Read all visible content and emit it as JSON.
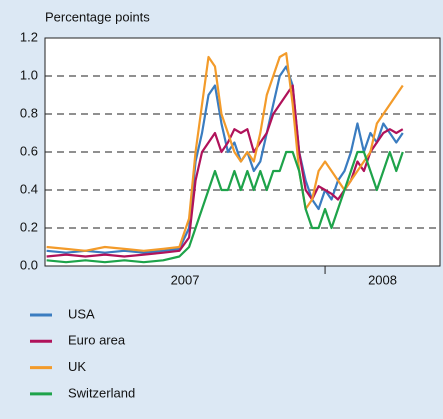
{
  "chart_data": {
    "type": "line",
    "title": "Percentage points",
    "x": [
      2007.14,
      2007.2,
      2007.26,
      2007.32,
      2007.38,
      2007.44,
      2007.5,
      2007.55,
      2007.58,
      2007.6,
      2007.62,
      2007.64,
      2007.66,
      2007.68,
      2007.7,
      2007.72,
      2007.74,
      2007.76,
      2007.78,
      2007.8,
      2007.82,
      2007.84,
      2007.86,
      2007.88,
      2007.9,
      2007.92,
      2007.94,
      2007.96,
      2007.98,
      2008.0,
      2008.02,
      2008.04,
      2008.06,
      2008.08,
      2008.1,
      2008.12,
      2008.14,
      2008.16,
      2008.18,
      2008.2,
      2008.22,
      2008.24
    ],
    "series": [
      {
        "name": "USA",
        "color": "#3a7cc0",
        "values": [
          0.08,
          0.07,
          0.08,
          0.07,
          0.08,
          0.07,
          0.08,
          0.09,
          0.2,
          0.55,
          0.7,
          0.9,
          0.95,
          0.75,
          0.6,
          0.65,
          0.55,
          0.6,
          0.5,
          0.55,
          0.7,
          0.85,
          1.0,
          1.05,
          0.95,
          0.6,
          0.45,
          0.35,
          0.3,
          0.4,
          0.35,
          0.45,
          0.5,
          0.6,
          0.75,
          0.6,
          0.7,
          0.65,
          0.75,
          0.7,
          0.65,
          0.7
        ]
      },
      {
        "name": "Euro area",
        "color": "#b0125a",
        "values": [
          0.05,
          0.06,
          0.05,
          0.06,
          0.05,
          0.06,
          0.07,
          0.08,
          0.15,
          0.45,
          0.6,
          0.65,
          0.7,
          0.6,
          0.65,
          0.72,
          0.7,
          0.72,
          0.6,
          0.65,
          0.7,
          0.8,
          0.85,
          0.9,
          0.95,
          0.6,
          0.4,
          0.35,
          0.42,
          0.4,
          0.38,
          0.35,
          0.4,
          0.45,
          0.55,
          0.5,
          0.6,
          0.65,
          0.7,
          0.72,
          0.7,
          0.72
        ]
      },
      {
        "name": "UK",
        "color": "#f39b2a",
        "values": [
          0.1,
          0.09,
          0.08,
          0.1,
          0.09,
          0.08,
          0.09,
          0.1,
          0.25,
          0.6,
          0.85,
          1.1,
          1.05,
          0.8,
          0.7,
          0.6,
          0.55,
          0.6,
          0.55,
          0.7,
          0.9,
          1.0,
          1.1,
          1.12,
          0.85,
          0.5,
          0.3,
          0.35,
          0.5,
          0.55,
          0.5,
          0.45,
          0.4,
          0.45,
          0.5,
          0.55,
          0.6,
          0.75,
          0.8,
          0.85,
          0.9,
          0.95
        ]
      },
      {
        "name": "Switzerland",
        "color": "#1ea34a",
        "values": [
          0.03,
          0.02,
          0.03,
          0.02,
          0.03,
          0.02,
          0.03,
          0.05,
          0.1,
          0.2,
          0.3,
          0.4,
          0.5,
          0.4,
          0.4,
          0.5,
          0.4,
          0.5,
          0.4,
          0.5,
          0.4,
          0.5,
          0.5,
          0.6,
          0.6,
          0.5,
          0.3,
          0.2,
          0.2,
          0.3,
          0.2,
          0.3,
          0.4,
          0.5,
          0.6,
          0.6,
          0.5,
          0.4,
          0.5,
          0.6,
          0.5,
          0.6
        ]
      }
    ],
    "xlim": [
      2007.135,
      2008.355
    ],
    "x_periods": [
      {
        "label": "2007",
        "start": 2007,
        "end": 2008
      },
      {
        "label": "2008",
        "start": 2008,
        "end": 2009
      }
    ],
    "ylim": [
      0,
      1.2
    ],
    "yticks": [
      {
        "value": 0,
        "label": "0.0"
      },
      {
        "value": 0.2,
        "label": "0.2"
      },
      {
        "value": 0.4,
        "label": "0.4"
      },
      {
        "value": 0.6,
        "label": "0.6"
      },
      {
        "value": 0.8,
        "label": "0.8"
      },
      {
        "value": 1.0,
        "label": "1.0"
      },
      {
        "value": 1.2,
        "label": "1.2"
      }
    ],
    "grid": true
  }
}
